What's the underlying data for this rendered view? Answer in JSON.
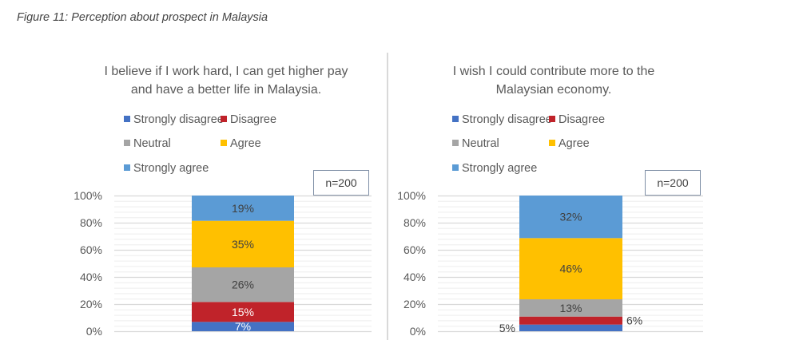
{
  "caption": "Figure 11: Perception about prospect in Malaysia",
  "chart_data": [
    {
      "type": "bar",
      "stacked": true,
      "title": [
        "I believe if I work hard, I can get higher pay",
        "and have a better life in Malaysia."
      ],
      "annotation": "n=200",
      "ylim": [
        0,
        100
      ],
      "yticks": [
        "0%",
        "20%",
        "40%",
        "60%",
        "80%",
        "100%"
      ],
      "grid": true,
      "legend_position": "top",
      "series": [
        {
          "name": "Strongly disagree",
          "values": [
            7
          ],
          "label": "7%",
          "color": "#4472c4"
        },
        {
          "name": "Disagree",
          "values": [
            15
          ],
          "label": "15%",
          "color": "#c0232a"
        },
        {
          "name": "Neutral",
          "values": [
            26
          ],
          "label": "26%",
          "color": "#a5a5a5"
        },
        {
          "name": "Agree",
          "values": [
            35
          ],
          "label": "35%",
          "color": "#ffc000"
        },
        {
          "name": "Strongly agree",
          "values": [
            19
          ],
          "label": "19%",
          "color": "#5b9bd5"
        }
      ]
    },
    {
      "type": "bar",
      "stacked": true,
      "title": [
        "I wish I could contribute more to the",
        "Malaysian economy."
      ],
      "annotation": "n=200",
      "ylim": [
        0,
        100
      ],
      "yticks": [
        "0%",
        "20%",
        "40%",
        "60%",
        "80%",
        "100%"
      ],
      "grid": true,
      "legend_position": "top",
      "series": [
        {
          "name": "Strongly disagree",
          "values": [
            5
          ],
          "label": "5%",
          "color": "#4472c4"
        },
        {
          "name": "Disagree",
          "values": [
            6
          ],
          "label": "6%",
          "color": "#c0232a"
        },
        {
          "name": "Neutral",
          "values": [
            13
          ],
          "label": "13%",
          "color": "#a5a5a5"
        },
        {
          "name": "Agree",
          "values": [
            46
          ],
          "label": "46%",
          "color": "#ffc000"
        },
        {
          "name": "Strongly agree",
          "values": [
            32
          ],
          "label": "32%",
          "color": "#5b9bd5"
        }
      ]
    }
  ]
}
